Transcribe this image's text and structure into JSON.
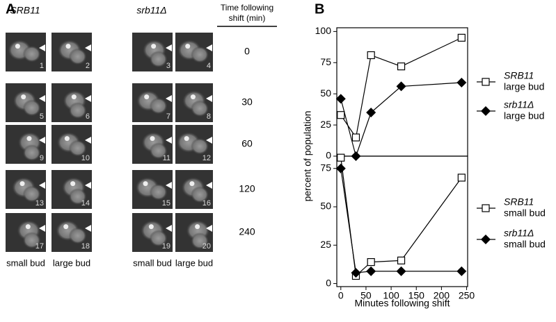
{
  "panel_a": {
    "label": "A",
    "columns": [
      "SRB11",
      "srb11Δ"
    ],
    "time_header": [
      "Time following",
      "shift (min)"
    ],
    "times": [
      "0",
      "30",
      "60",
      "120",
      "240"
    ],
    "images": [
      "1",
      "2",
      "3",
      "4",
      "5",
      "6",
      "7",
      "8",
      "9",
      "10",
      "11",
      "12",
      "13",
      "14",
      "15",
      "16",
      "17",
      "18",
      "19",
      "20"
    ],
    "bud_labels": [
      "small bud",
      "large bud",
      "small bud",
      "large bud"
    ]
  },
  "chart_data": [
    {
      "type": "line",
      "panel_label": "B",
      "x": [
        0,
        30,
        60,
        120,
        240
      ],
      "xlim": [
        -8,
        252
      ],
      "ylim": [
        0,
        103
      ],
      "yticks": [
        0,
        25,
        50,
        75,
        100
      ],
      "series": [
        {
          "name": "SRB11",
          "group": "large bud",
          "marker": "square",
          "color": "#000000",
          "values": [
            33,
            15,
            81,
            72,
            95
          ]
        },
        {
          "name": "srb11Δ",
          "group": "large bud",
          "marker": "diamond",
          "color": "#000000",
          "values": [
            46,
            0,
            35,
            56,
            59
          ]
        }
      ]
    },
    {
      "type": "line",
      "ylabel": "percent of population",
      "xlabel": "Minutes following shift",
      "x": [
        0,
        30,
        60,
        120,
        240
      ],
      "xlim": [
        -8,
        252
      ],
      "xticks": [
        0,
        50,
        100,
        150,
        200,
        250
      ],
      "ylim": [
        -2,
        83
      ],
      "yticks": [
        0,
        25,
        50,
        75
      ],
      "series": [
        {
          "name": "SRB11",
          "group": "small bud",
          "marker": "square",
          "color": "#000000",
          "values": [
            82,
            5,
            14,
            15,
            69
          ]
        },
        {
          "name": "srb11Δ",
          "group": "small bud",
          "marker": "diamond",
          "color": "#000000",
          "values": [
            75,
            7,
            8,
            8,
            8
          ]
        }
      ]
    }
  ]
}
